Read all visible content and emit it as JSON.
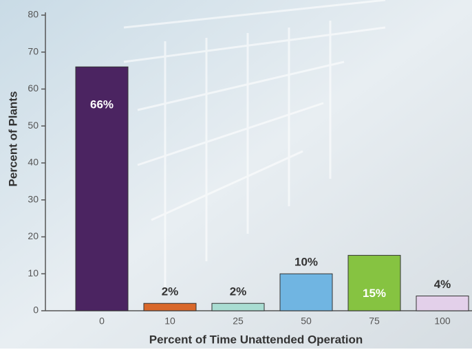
{
  "chart_data": {
    "type": "bar",
    "x_label": "Percent of Time Unattended Operation",
    "y_label": "Percent of Plants",
    "categories": [
      "0",
      "10",
      "25",
      "50",
      "75",
      "100"
    ],
    "values": [
      66,
      2,
      2,
      10,
      15,
      4
    ],
    "value_labels": [
      "66%",
      "2%",
      "2%",
      "10%",
      "15%",
      "4%"
    ],
    "colors": [
      "#4b2461",
      "#d9682b",
      "#a9ddd2",
      "#70b5e2",
      "#86c341",
      "#e3d0ea"
    ],
    "ylim": [
      0,
      80
    ],
    "yticks": [
      0,
      10,
      20,
      30,
      40,
      50,
      60,
      70,
      80
    ]
  }
}
